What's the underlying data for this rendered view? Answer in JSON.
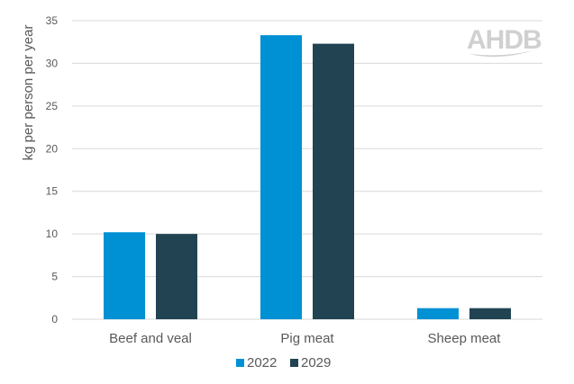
{
  "chart_data": {
    "type": "bar",
    "categories": [
      "Beef and veal",
      "Pig meat",
      "Sheep meat"
    ],
    "series": [
      {
        "name": "2022",
        "values": [
          10.2,
          33.3,
          1.3
        ],
        "color": "#0090d4"
      },
      {
        "name": "2029",
        "values": [
          10.0,
          32.3,
          1.3
        ],
        "color": "#214352"
      }
    ],
    "title": "",
    "xlabel": "",
    "ylabel": "kg per person per year",
    "ylim": [
      0,
      35
    ],
    "yticks": [
      0,
      5,
      10,
      15,
      20,
      25,
      30,
      35
    ],
    "grid": true,
    "legend_position": "bottom",
    "gridline_color": "#d9d9d9"
  },
  "logo": {
    "text": "AHDB",
    "color": "#d0d0d0"
  }
}
